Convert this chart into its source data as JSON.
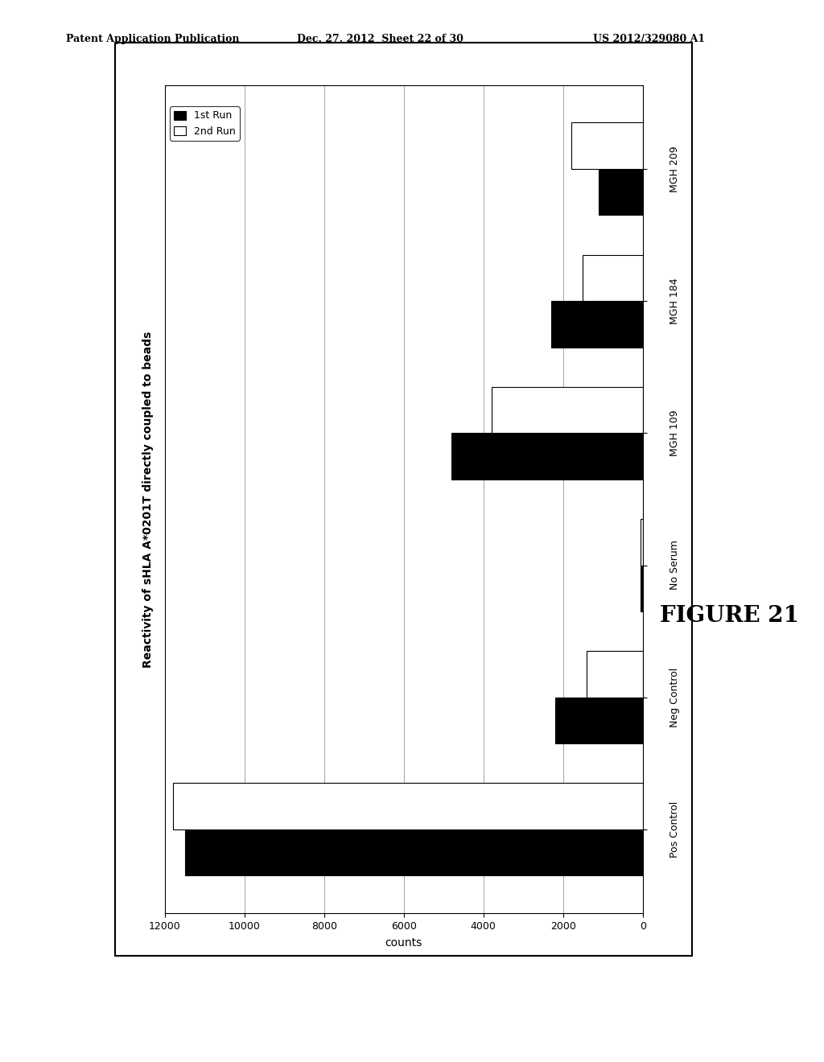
{
  "categories": [
    "Pos Control",
    "Neg Control",
    "No Serum",
    "MGH 109",
    "MGH 184",
    "MGH 209"
  ],
  "run1_values": [
    11500,
    2200,
    50,
    4800,
    2300,
    1100
  ],
  "run2_values": [
    11800,
    1400,
    50,
    3800,
    1500,
    1800
  ],
  "run1_color": "#000000",
  "run2_color": "#ffffff",
  "run2_edgecolor": "#000000",
  "title": "Reactivity of sHLA A*0201T directly coupled to beads",
  "xlabel": "counts",
  "xlim_max": 12000,
  "xticks": [
    0,
    2000,
    4000,
    6000,
    8000,
    10000,
    12000
  ],
  "legend_labels": [
    "1st Run",
    "2nd Run"
  ],
  "figure_caption": "FIGURE 21",
  "header_left": "Patent Application Publication",
  "header_center": "Dec. 27, 2012  Sheet 22 of 30",
  "header_right": "US 2012/329080 A1",
  "bar_height": 0.35,
  "background_color": "#ffffff"
}
